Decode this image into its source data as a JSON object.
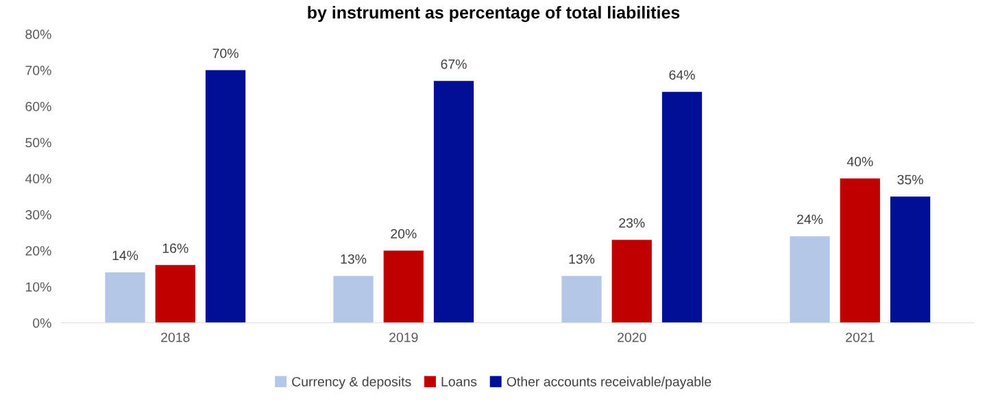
{
  "chart_data": {
    "type": "bar",
    "title": "by instrument as percentage of total liabilities",
    "categories": [
      "2018",
      "2019",
      "2020",
      "2021"
    ],
    "series": [
      {
        "name": "Currency & deposits",
        "color": "#b4c7e7",
        "values": [
          14,
          13,
          13,
          24
        ],
        "value_labels": [
          "14%",
          "13%",
          "13%",
          "24%"
        ]
      },
      {
        "name": "Loans",
        "color": "#c00000",
        "values": [
          16,
          20,
          23,
          40
        ],
        "value_labels": [
          "16%",
          "20%",
          "23%",
          "40%"
        ]
      },
      {
        "name": "Other accounts receivable/payable",
        "color": "#000f96",
        "values": [
          70,
          67,
          64,
          35
        ],
        "value_labels": [
          "70%",
          "67%",
          "64%",
          "35%"
        ]
      }
    ],
    "ylim": [
      0,
      80
    ],
    "yticks": [
      {
        "value": 0,
        "label": "0%"
      },
      {
        "value": 10,
        "label": "10%"
      },
      {
        "value": 20,
        "label": "20%"
      },
      {
        "value": 30,
        "label": "30%"
      },
      {
        "value": 40,
        "label": "40%"
      },
      {
        "value": 50,
        "label": "50%"
      },
      {
        "value": 60,
        "label": "60%"
      },
      {
        "value": 70,
        "label": "70%"
      },
      {
        "value": 80,
        "label": "80%"
      }
    ],
    "grid": false,
    "legend": "bottom"
  }
}
